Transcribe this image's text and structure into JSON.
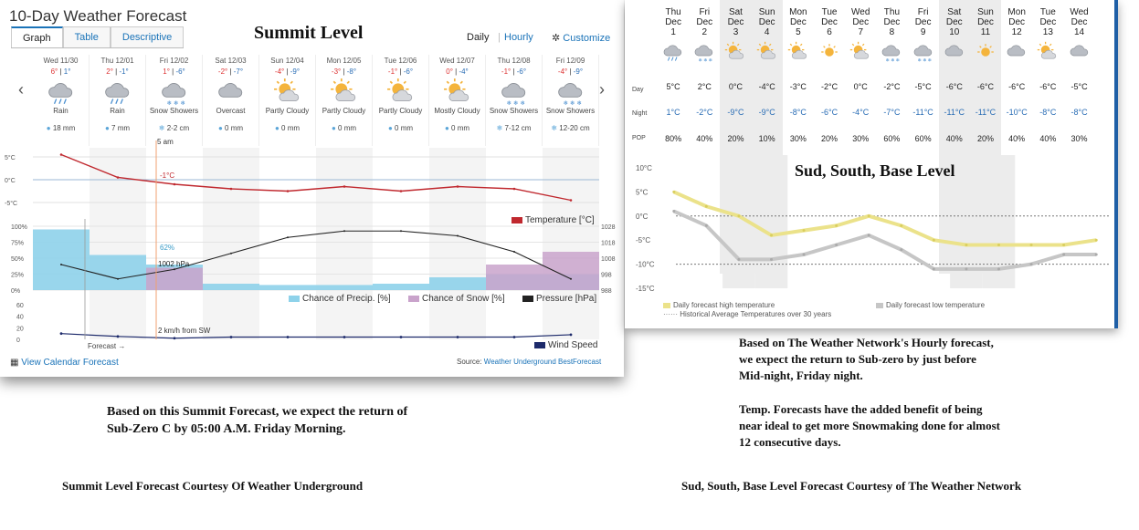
{
  "summit": {
    "title": "10-Day Weather Forecast",
    "overlay_label": "Summit Level",
    "tabs": [
      "Graph",
      "Table",
      "Descriptive"
    ],
    "mode_daily": "Daily",
    "mode_hourly": "Hourly",
    "customize": "Customize",
    "days": [
      {
        "date": "Wed 11/30",
        "hi": "6°",
        "lo": "1°",
        "icon": "rain-icon",
        "cond": "Rain",
        "precip": "18 mm"
      },
      {
        "date": "Thu 12/01",
        "hi": "2°",
        "lo": "-1°",
        "icon": "rain-icon",
        "cond": "Rain",
        "precip": "7 mm"
      },
      {
        "date": "Fri 12/02",
        "hi": "1°",
        "lo": "-6°",
        "icon": "snow-icon",
        "cond": "Snow Showers",
        "precip": "2-2 cm"
      },
      {
        "date": "Sat 12/03",
        "hi": "-2°",
        "lo": "-7°",
        "icon": "overcast-icon",
        "cond": "Overcast",
        "precip": "0 mm"
      },
      {
        "date": "Sun 12/04",
        "hi": "-4°",
        "lo": "-9°",
        "icon": "partly-cloudy-icon",
        "cond": "Partly Cloudy",
        "precip": "0 mm"
      },
      {
        "date": "Mon 12/05",
        "hi": "-3°",
        "lo": "-8°",
        "icon": "partly-cloudy-icon",
        "cond": "Partly Cloudy",
        "precip": "0 mm"
      },
      {
        "date": "Tue 12/06",
        "hi": "-1°",
        "lo": "-6°",
        "icon": "partly-cloudy-icon",
        "cond": "Partly Cloudy",
        "precip": "0 mm"
      },
      {
        "date": "Wed 12/07",
        "hi": "0°",
        "lo": "-4°",
        "icon": "mostly-cloudy-icon",
        "cond": "Mostly Cloudy",
        "precip": "0 mm"
      },
      {
        "date": "Thu 12/08",
        "hi": "-1°",
        "lo": "-6°",
        "icon": "snow-icon",
        "cond": "Snow Showers",
        "precip": "7-12 cm"
      },
      {
        "date": "Fri 12/09",
        "hi": "-4°",
        "lo": "-9°",
        "icon": "snow-icon",
        "cond": "Snow Showers",
        "precip": "12-20 cm"
      }
    ],
    "cursor_time": "5 am",
    "cursor_temp": "-1°C",
    "cursor_precip": "62%",
    "cursor_pressure": "1002 hPa",
    "wind_note": "2 km/h from SW",
    "forecast_label": "Forecast →",
    "legend_temp": "Temperature [°C]",
    "legend_precip": "Chance of Precip. [%]",
    "legend_snow": "Chance of Snow [%]",
    "legend_pressure": "Pressure [hPa]",
    "legend_wind": "Wind Speed",
    "calendar_link": "View Calendar Forecast",
    "source_prefix": "Source: ",
    "source_link": "Weather Underground BestForecast"
  },
  "base": {
    "overlay_label": "Sud, South, Base Level",
    "row_labels": [
      "Day",
      "Night",
      "POP"
    ],
    "days": [
      {
        "dow": "Thu",
        "m": "Dec",
        "d": "1",
        "icon": "rain-icon",
        "day": "5°C",
        "night": "1°C",
        "pop": "80%"
      },
      {
        "dow": "Fri",
        "m": "Dec",
        "d": "2",
        "icon": "snow-icon",
        "day": "2°C",
        "night": "-2°C",
        "pop": "40%"
      },
      {
        "dow": "Sat",
        "m": "Dec",
        "d": "3",
        "icon": "partly-cloudy-icon",
        "day": "0°C",
        "night": "-9°C",
        "pop": "20%"
      },
      {
        "dow": "Sun",
        "m": "Dec",
        "d": "4",
        "icon": "partly-cloudy-icon",
        "day": "-4°C",
        "night": "-9°C",
        "pop": "10%"
      },
      {
        "dow": "Mon",
        "m": "Dec",
        "d": "5",
        "icon": "partly-cloudy-icon",
        "day": "-3°C",
        "night": "-8°C",
        "pop": "30%"
      },
      {
        "dow": "Tue",
        "m": "Dec",
        "d": "6",
        "icon": "sun-icon",
        "day": "-2°C",
        "night": "-6°C",
        "pop": "20%"
      },
      {
        "dow": "Wed",
        "m": "Dec",
        "d": "7",
        "icon": "partly-cloudy-icon",
        "day": "0°C",
        "night": "-4°C",
        "pop": "30%"
      },
      {
        "dow": "Thu",
        "m": "Dec",
        "d": "8",
        "icon": "snow-icon",
        "day": "-2°C",
        "night": "-7°C",
        "pop": "60%"
      },
      {
        "dow": "Fri",
        "m": "Dec",
        "d": "9",
        "icon": "snow-icon",
        "day": "-5°C",
        "night": "-11°C",
        "pop": "60%"
      },
      {
        "dow": "Sat",
        "m": "Dec",
        "d": "10",
        "icon": "cloud-icon",
        "day": "-6°C",
        "night": "-11°C",
        "pop": "40%"
      },
      {
        "dow": "Sun",
        "m": "Dec",
        "d": "11",
        "icon": "sun-icon",
        "day": "-6°C",
        "night": "-11°C",
        "pop": "20%"
      },
      {
        "dow": "Mon",
        "m": "Dec",
        "d": "12",
        "icon": "cloud-icon",
        "day": "-6°C",
        "night": "-10°C",
        "pop": "40%"
      },
      {
        "dow": "Tue",
        "m": "Dec",
        "d": "13",
        "icon": "partly-cloudy-icon",
        "day": "-6°C",
        "night": "-8°C",
        "pop": "40%"
      },
      {
        "dow": "Wed",
        "m": "Dec",
        "d": "14",
        "icon": "cloud-icon",
        "day": "-5°C",
        "night": "-8°C",
        "pop": "30%"
      }
    ],
    "legend_high": "Daily forecast high temperature",
    "legend_low": "Daily forecast low temperature",
    "legend_avg": "Historical Average Temperatures over 30 years"
  },
  "captions": {
    "summit_note": "Based on this Summit Forecast, we expect the return of\nSub-Zero C by 05:00 A.M. Friday Morning.",
    "summit_credit": "Summit Level Forecast Courtesy Of  Weather Underground",
    "base_note_1": "Based on The Weather Network's Hourly forecast,\nwe expect the return to Sub-zero by just before\nMid-night, Friday night.",
    "base_note_2": "Temp. Forecasts have the added benefit of being\nnear ideal to get more Snowmaking done for almost\n12 consecutive days.",
    "base_credit": "Sud, South, Base Level Forecast Courtesy of The Weather Network"
  },
  "colors": {
    "temp": "#c0282e",
    "precip": "#8ed2ea",
    "snow": "#c9a3cb",
    "pressure": "#222222",
    "wind": "#1d2a6b",
    "high": "#ebe28a",
    "low": "#c6c6c6",
    "accent": "#1a73b8"
  },
  "chart_data": [
    {
      "type": "line",
      "x": [
        "Wed 11/30",
        "Thu 12/01",
        "Fri 12/02",
        "Sat 12/03",
        "Sun 12/04",
        "Mon 12/05",
        "Tue 12/06",
        "Wed 12/07",
        "Thu 12/08",
        "Fri 12/09"
      ],
      "series": [
        {
          "name": "Temperature [°C]",
          "values": [
            5.5,
            0.5,
            -1,
            -2,
            -2.5,
            -1.5,
            -2.5,
            -1.5,
            -2,
            -4.5
          ]
        },
        {
          "name": "Pressure [hPa]",
          "values": [
            1004,
            995,
            1001,
            1011,
            1021,
            1025,
            1025,
            1022,
            1012,
            995
          ]
        },
        {
          "name": "Chance of Precip. [%]",
          "values": [
            95,
            55,
            40,
            10,
            8,
            8,
            10,
            20,
            25,
            25
          ]
        },
        {
          "name": "Chance of Snow [%]",
          "values": [
            0,
            0,
            35,
            0,
            0,
            0,
            0,
            0,
            40,
            60
          ]
        },
        {
          "name": "Wind Speed",
          "values": [
            10,
            5,
            2,
            4,
            4,
            4,
            4,
            4,
            4,
            8
          ]
        }
      ],
      "ylim_temp": [
        -7,
        7
      ],
      "ylim_pct": [
        0,
        100
      ],
      "ylim_pressure": [
        988,
        1028
      ],
      "ylim_wind": [
        0,
        60
      ]
    },
    {
      "type": "line",
      "categories": [
        "Dec 1",
        "Dec 2",
        "Dec 3",
        "Dec 4",
        "Dec 5",
        "Dec 6",
        "Dec 7",
        "Dec 8",
        "Dec 9",
        "Dec 10",
        "Dec 11",
        "Dec 12",
        "Dec 13",
        "Dec 14"
      ],
      "series": [
        {
          "name": "Daily forecast high temperature",
          "values": [
            5,
            2,
            0,
            -4,
            -3,
            -2,
            0,
            -2,
            -5,
            -6,
            -6,
            -6,
            -6,
            -5
          ]
        },
        {
          "name": "Daily forecast low temperature",
          "values": [
            1,
            -2,
            -9,
            -9,
            -8,
            -6,
            -4,
            -7,
            -11,
            -11,
            -11,
            -10,
            -8,
            -8
          ]
        }
      ],
      "reference_lines": [
        0,
        -10
      ],
      "ylim": [
        -15,
        10
      ],
      "yticks": [
        "10°C",
        "5°C",
        "0°C",
        "-5°C",
        "-10°C",
        "-15°C"
      ]
    }
  ]
}
